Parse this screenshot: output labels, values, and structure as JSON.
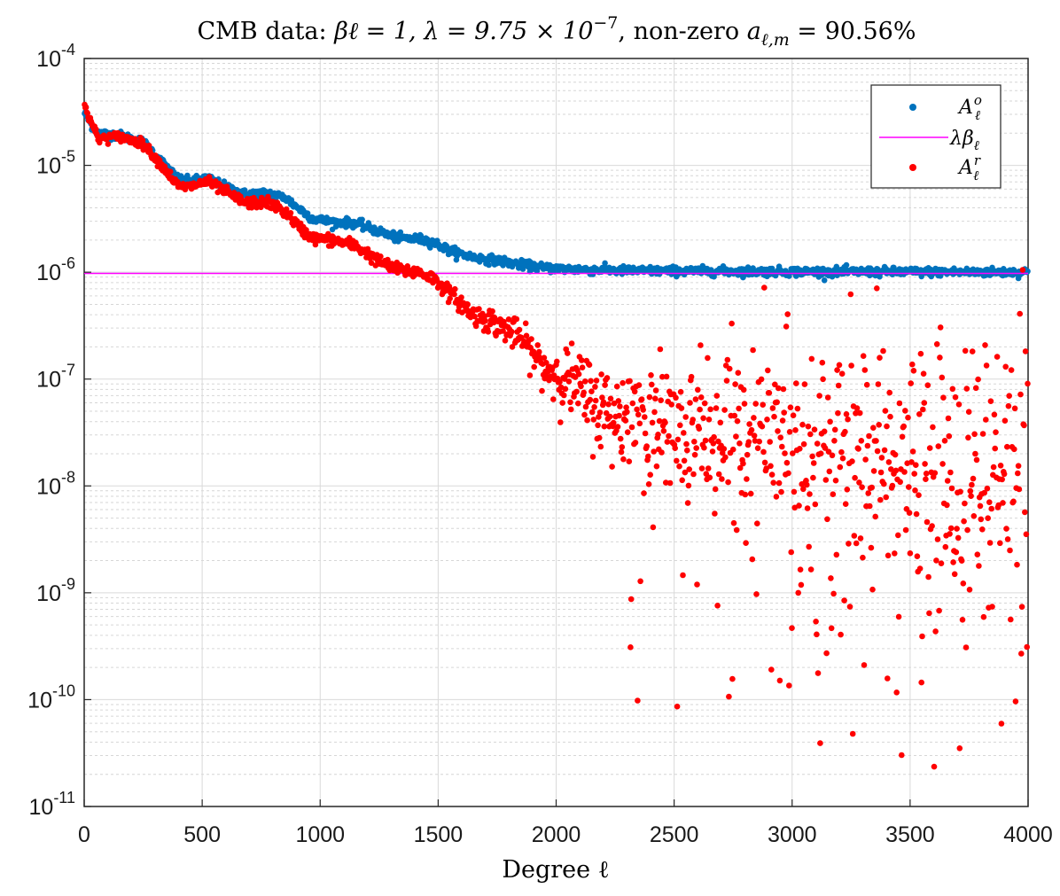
{
  "chart_data": {
    "type": "scatter",
    "title": "CMB data: βℓ = 1, λ = 9.75 × 10⁻⁷, non-zero aℓ,m = 90.56%",
    "title_parts": {
      "prefix": "CMB data: ",
      "beta": "βℓ = 1, ",
      "lambda_pre": "λ = 9.75 × 10",
      "lambda_exp": "−7",
      "mid": ", non-zero ",
      "a": "a",
      "a_sub": "ℓ,m",
      "suffix": " = 90.56%"
    },
    "xlabel": "Degree ℓ",
    "ylabel": "",
    "xlim": [
      0,
      4000
    ],
    "ylim_log10": [
      -11,
      -4
    ],
    "yscale": "log",
    "grid": true,
    "x_ticks": [
      "0",
      "500",
      "1000",
      "1500",
      "2000",
      "2500",
      "3000",
      "3500",
      "4000"
    ],
    "x_tick_values": [
      0,
      500,
      1000,
      1500,
      2000,
      2500,
      3000,
      3500,
      4000
    ],
    "y_ticks": [
      {
        "base": "10",
        "exp": "-4",
        "value": -4
      },
      {
        "base": "10",
        "exp": "-5",
        "value": -5
      },
      {
        "base": "10",
        "exp": "-6",
        "value": -6
      },
      {
        "base": "10",
        "exp": "-7",
        "value": -7
      },
      {
        "base": "10",
        "exp": "-8",
        "value": -8
      },
      {
        "base": "10",
        "exp": "-9",
        "value": -9
      },
      {
        "base": "10",
        "exp": "-10",
        "value": -10
      },
      {
        "base": "10",
        "exp": "-11",
        "value": -11
      }
    ],
    "legend_position": "top-right",
    "series": [
      {
        "name": "A_ℓ^o",
        "legend_main": "A",
        "legend_sup": "o",
        "legend_sub": "ℓ",
        "kind": "markers",
        "color": "#0072bd",
        "profile_log10": [
          [
            0,
            -4.5
          ],
          [
            30,
            -4.62
          ],
          [
            60,
            -4.7
          ],
          [
            150,
            -4.72
          ],
          [
            250,
            -4.78
          ],
          [
            330,
            -4.97
          ],
          [
            400,
            -5.13
          ],
          [
            450,
            -5.15
          ],
          [
            520,
            -5.12
          ],
          [
            600,
            -5.2
          ],
          [
            680,
            -5.27
          ],
          [
            780,
            -5.26
          ],
          [
            850,
            -5.3
          ],
          [
            920,
            -5.42
          ],
          [
            970,
            -5.5
          ],
          [
            1050,
            -5.53
          ],
          [
            1150,
            -5.54
          ],
          [
            1250,
            -5.62
          ],
          [
            1330,
            -5.68
          ],
          [
            1420,
            -5.69
          ],
          [
            1480,
            -5.72
          ],
          [
            1550,
            -5.8
          ],
          [
            1650,
            -5.86
          ],
          [
            1750,
            -5.89
          ],
          [
            1850,
            -5.93
          ],
          [
            1950,
            -5.96
          ],
          [
            2100,
            -5.975
          ],
          [
            2300,
            -5.985
          ],
          [
            2600,
            -5.99
          ],
          [
            3000,
            -5.995
          ],
          [
            4000,
            -6.0
          ]
        ],
        "noise_log10": 0.02
      },
      {
        "name": "λβ_ℓ",
        "legend_main": "λβ",
        "legend_sub": "ℓ",
        "kind": "line",
        "color": "#ff00ff",
        "y_value": 9.75e-07
      },
      {
        "name": "A_ℓ^r",
        "legend_main": "A",
        "legend_sup": "r",
        "legend_sub": "ℓ",
        "kind": "markers",
        "color": "#ff0000",
        "profile_log10": [
          [
            0,
            -4.4
          ],
          [
            20,
            -4.55
          ],
          [
            60,
            -4.75
          ],
          [
            150,
            -4.73
          ],
          [
            250,
            -4.8
          ],
          [
            330,
            -5.0
          ],
          [
            400,
            -5.2
          ],
          [
            450,
            -5.2
          ],
          [
            520,
            -5.15
          ],
          [
            600,
            -5.25
          ],
          [
            680,
            -5.35
          ],
          [
            780,
            -5.35
          ],
          [
            850,
            -5.43
          ],
          [
            920,
            -5.6
          ],
          [
            970,
            -5.68
          ],
          [
            1050,
            -5.7
          ],
          [
            1150,
            -5.75
          ],
          [
            1250,
            -5.9
          ],
          [
            1330,
            -5.98
          ],
          [
            1420,
            -6.0
          ],
          [
            1480,
            -6.06
          ],
          [
            1550,
            -6.2
          ],
          [
            1650,
            -6.4
          ],
          [
            1750,
            -6.48
          ],
          [
            1850,
            -6.62
          ],
          [
            1950,
            -6.9
          ],
          [
            2050,
            -7.0
          ],
          [
            2200,
            -7.3
          ],
          [
            2400,
            -7.45
          ],
          [
            2700,
            -7.5
          ],
          [
            3000,
            -7.55
          ],
          [
            3200,
            -7.7
          ],
          [
            3500,
            -7.9
          ],
          [
            4000,
            -8.0
          ]
        ],
        "noise_log10_by_x": [
          [
            0,
            0.02
          ],
          [
            1500,
            0.03
          ],
          [
            1900,
            0.08
          ],
          [
            2100,
            0.18
          ],
          [
            2500,
            0.3
          ],
          [
            3000,
            0.45
          ],
          [
            4000,
            0.75
          ]
        ]
      }
    ]
  }
}
